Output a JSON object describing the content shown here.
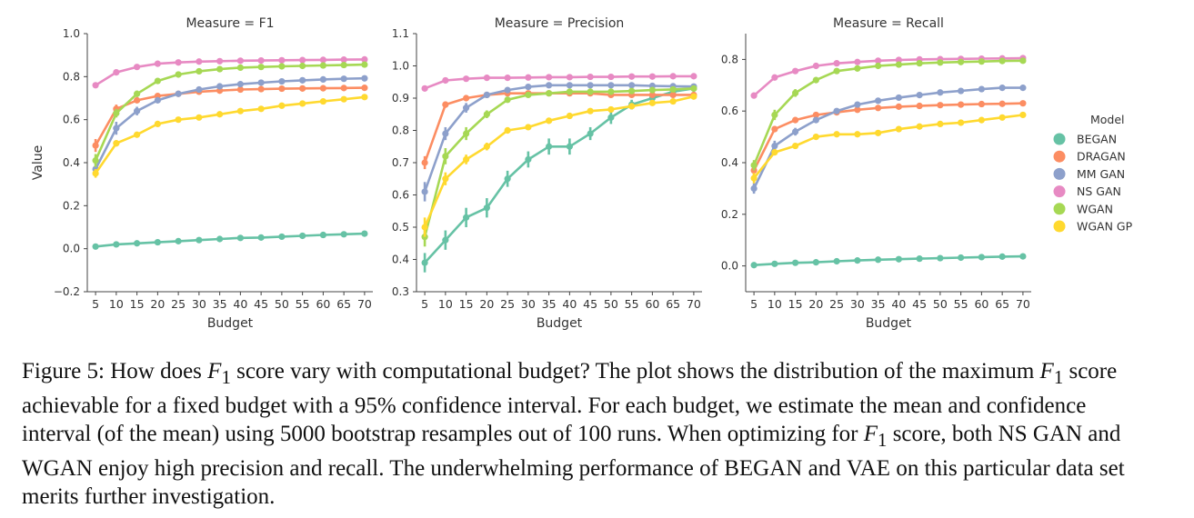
{
  "chart_data": [
    {
      "type": "line",
      "title": "Measure = F1",
      "xlabel": "Budget",
      "ylabel": "Value",
      "x": [
        5,
        10,
        15,
        20,
        25,
        30,
        35,
        40,
        45,
        50,
        55,
        60,
        65,
        70
      ],
      "ylim": [
        -0.2,
        1.0
      ],
      "yticks": [
        -0.2,
        0.0,
        0.2,
        0.4,
        0.6,
        0.8,
        1.0
      ],
      "ytick_labels": [
        "−0.2",
        "0.0",
        "0.2",
        "0.4",
        "0.6",
        "0.8",
        "1.0"
      ],
      "series": [
        {
          "name": "BEGAN",
          "values": [
            0.01,
            0.02,
            0.025,
            0.03,
            0.035,
            0.04,
            0.045,
            0.05,
            0.052,
            0.056,
            0.06,
            0.064,
            0.067,
            0.07
          ],
          "err": [
            0.008,
            0.008,
            0.008,
            0.008,
            0.008,
            0.008,
            0.008,
            0.008,
            0.008,
            0.008,
            0.008,
            0.008,
            0.008,
            0.008
          ]
        },
        {
          "name": "DRAGAN",
          "values": [
            0.48,
            0.65,
            0.69,
            0.71,
            0.72,
            0.73,
            0.735,
            0.74,
            0.742,
            0.744,
            0.745,
            0.746,
            0.747,
            0.748
          ],
          "err": [
            0.03,
            0.02,
            0.01,
            0.008,
            0.006,
            0.005,
            0.005,
            0.005,
            0.005,
            0.005,
            0.005,
            0.005,
            0.005,
            0.005
          ]
        },
        {
          "name": "MM GAN",
          "values": [
            0.37,
            0.56,
            0.64,
            0.69,
            0.72,
            0.74,
            0.755,
            0.765,
            0.772,
            0.778,
            0.783,
            0.787,
            0.79,
            0.792
          ],
          "err": [
            0.03,
            0.03,
            0.02,
            0.012,
            0.01,
            0.008,
            0.007,
            0.006,
            0.006,
            0.006,
            0.006,
            0.006,
            0.006,
            0.006
          ]
        },
        {
          "name": "NS GAN",
          "values": [
            0.76,
            0.82,
            0.845,
            0.86,
            0.866,
            0.87,
            0.872,
            0.874,
            0.875,
            0.876,
            0.877,
            0.878,
            0.879,
            0.88
          ],
          "err": [
            0.01,
            0.008,
            0.006,
            0.005,
            0.005,
            0.005,
            0.005,
            0.005,
            0.005,
            0.005,
            0.005,
            0.005,
            0.005,
            0.005
          ]
        },
        {
          "name": "WGAN",
          "values": [
            0.41,
            0.63,
            0.72,
            0.78,
            0.81,
            0.825,
            0.835,
            0.842,
            0.845,
            0.848,
            0.85,
            0.852,
            0.854,
            0.856
          ],
          "err": [
            0.03,
            0.02,
            0.015,
            0.01,
            0.008,
            0.007,
            0.006,
            0.006,
            0.006,
            0.006,
            0.006,
            0.006,
            0.006,
            0.006
          ]
        },
        {
          "name": "WGAN GP",
          "values": [
            0.35,
            0.49,
            0.53,
            0.58,
            0.6,
            0.61,
            0.625,
            0.64,
            0.65,
            0.665,
            0.675,
            0.685,
            0.695,
            0.705
          ],
          "err": [
            0.02,
            0.015,
            0.012,
            0.01,
            0.008,
            0.007,
            0.007,
            0.007,
            0.007,
            0.007,
            0.007,
            0.007,
            0.007,
            0.007
          ]
        }
      ]
    },
    {
      "type": "line",
      "title": "Measure = Precision",
      "xlabel": "Budget",
      "ylabel": "",
      "x": [
        5,
        10,
        15,
        20,
        25,
        30,
        35,
        40,
        45,
        50,
        55,
        60,
        65,
        70
      ],
      "ylim": [
        0.3,
        1.1
      ],
      "yticks": [
        0.3,
        0.4,
        0.5,
        0.6,
        0.7,
        0.8,
        0.9,
        1.0,
        1.1
      ],
      "ytick_labels": [
        "0.3",
        "0.4",
        "0.5",
        "0.6",
        "0.7",
        "0.8",
        "0.9",
        "1.0",
        "1.1"
      ],
      "series": [
        {
          "name": "BEGAN",
          "values": [
            0.39,
            0.46,
            0.53,
            0.56,
            0.65,
            0.71,
            0.75,
            0.75,
            0.79,
            0.84,
            0.88,
            0.9,
            0.92,
            0.93
          ],
          "err": [
            0.03,
            0.03,
            0.03,
            0.03,
            0.025,
            0.025,
            0.025,
            0.025,
            0.02,
            0.02,
            0.015,
            0.01,
            0.01,
            0.01
          ]
        },
        {
          "name": "DRAGAN",
          "values": [
            0.7,
            0.88,
            0.9,
            0.91,
            0.915,
            0.915,
            0.915,
            0.915,
            0.915,
            0.91,
            0.91,
            0.91,
            0.91,
            0.91
          ],
          "err": [
            0.02,
            0.01,
            0.008,
            0.006,
            0.005,
            0.005,
            0.005,
            0.005,
            0.005,
            0.005,
            0.005,
            0.005,
            0.005,
            0.005
          ]
        },
        {
          "name": "MM GAN",
          "values": [
            0.61,
            0.79,
            0.87,
            0.91,
            0.925,
            0.935,
            0.94,
            0.94,
            0.94,
            0.94,
            0.94,
            0.938,
            0.937,
            0.936
          ],
          "err": [
            0.03,
            0.02,
            0.015,
            0.01,
            0.006,
            0.005,
            0.005,
            0.005,
            0.005,
            0.005,
            0.005,
            0.005,
            0.005,
            0.005
          ]
        },
        {
          "name": "NS GAN",
          "values": [
            0.93,
            0.955,
            0.96,
            0.963,
            0.963,
            0.964,
            0.965,
            0.965,
            0.966,
            0.966,
            0.967,
            0.967,
            0.968,
            0.968
          ],
          "err": [
            0.006,
            0.005,
            0.004,
            0.004,
            0.004,
            0.004,
            0.004,
            0.004,
            0.004,
            0.004,
            0.004,
            0.004,
            0.004,
            0.004
          ]
        },
        {
          "name": "WGAN",
          "values": [
            0.47,
            0.72,
            0.79,
            0.85,
            0.895,
            0.91,
            0.915,
            0.92,
            0.92,
            0.92,
            0.922,
            0.925,
            0.927,
            0.93
          ],
          "err": [
            0.03,
            0.025,
            0.02,
            0.012,
            0.008,
            0.006,
            0.005,
            0.005,
            0.005,
            0.005,
            0.005,
            0.005,
            0.005,
            0.005
          ]
        },
        {
          "name": "WGAN GP",
          "values": [
            0.5,
            0.65,
            0.71,
            0.75,
            0.8,
            0.81,
            0.83,
            0.845,
            0.86,
            0.865,
            0.875,
            0.885,
            0.89,
            0.905
          ],
          "err": [
            0.03,
            0.02,
            0.015,
            0.012,
            0.01,
            0.008,
            0.007,
            0.006,
            0.006,
            0.006,
            0.006,
            0.006,
            0.006,
            0.006
          ]
        }
      ]
    },
    {
      "type": "line",
      "title": "Measure = Recall",
      "xlabel": "Budget",
      "ylabel": "",
      "x": [
        5,
        10,
        15,
        20,
        25,
        30,
        35,
        40,
        45,
        50,
        55,
        60,
        65,
        70
      ],
      "ylim": [
        -0.1,
        0.9
      ],
      "yticks": [
        0.0,
        0.2,
        0.4,
        0.6,
        0.8
      ],
      "ytick_labels": [
        "0.0",
        "0.2",
        "0.4",
        "0.6",
        "0.8"
      ],
      "series": [
        {
          "name": "BEGAN",
          "values": [
            0.003,
            0.008,
            0.012,
            0.014,
            0.018,
            0.021,
            0.024,
            0.026,
            0.028,
            0.03,
            0.032,
            0.034,
            0.036,
            0.037
          ],
          "err": [
            0.004,
            0.004,
            0.004,
            0.004,
            0.004,
            0.004,
            0.004,
            0.004,
            0.004,
            0.004,
            0.004,
            0.004,
            0.004,
            0.004
          ]
        },
        {
          "name": "DRAGAN",
          "values": [
            0.37,
            0.53,
            0.565,
            0.585,
            0.595,
            0.605,
            0.612,
            0.617,
            0.62,
            0.623,
            0.625,
            0.627,
            0.628,
            0.63
          ],
          "err": [
            0.02,
            0.012,
            0.01,
            0.008,
            0.006,
            0.005,
            0.005,
            0.005,
            0.005,
            0.005,
            0.005,
            0.005,
            0.005,
            0.005
          ]
        },
        {
          "name": "MM GAN",
          "values": [
            0.3,
            0.465,
            0.52,
            0.565,
            0.6,
            0.625,
            0.64,
            0.652,
            0.662,
            0.672,
            0.678,
            0.685,
            0.69,
            0.69
          ],
          "err": [
            0.02,
            0.02,
            0.015,
            0.01,
            0.008,
            0.007,
            0.006,
            0.006,
            0.006,
            0.006,
            0.006,
            0.006,
            0.006,
            0.006
          ]
        },
        {
          "name": "NS GAN",
          "values": [
            0.66,
            0.73,
            0.755,
            0.775,
            0.785,
            0.79,
            0.795,
            0.798,
            0.8,
            0.801,
            0.802,
            0.803,
            0.804,
            0.805
          ],
          "err": [
            0.01,
            0.008,
            0.006,
            0.005,
            0.005,
            0.004,
            0.004,
            0.004,
            0.004,
            0.004,
            0.004,
            0.004,
            0.004,
            0.004
          ]
        },
        {
          "name": "WGAN",
          "values": [
            0.39,
            0.585,
            0.67,
            0.72,
            0.755,
            0.765,
            0.775,
            0.78,
            0.785,
            0.788,
            0.79,
            0.792,
            0.794,
            0.795
          ],
          "err": [
            0.02,
            0.02,
            0.015,
            0.01,
            0.008,
            0.006,
            0.006,
            0.005,
            0.005,
            0.005,
            0.005,
            0.005,
            0.005,
            0.005
          ]
        },
        {
          "name": "WGAN GP",
          "values": [
            0.34,
            0.44,
            0.465,
            0.5,
            0.51,
            0.51,
            0.515,
            0.53,
            0.54,
            0.55,
            0.555,
            0.565,
            0.575,
            0.585
          ],
          "err": [
            0.02,
            0.012,
            0.01,
            0.008,
            0.006,
            0.006,
            0.006,
            0.006,
            0.006,
            0.006,
            0.006,
            0.006,
            0.006,
            0.006
          ]
        }
      ]
    }
  ],
  "legend": {
    "title": "Model",
    "placement": "right",
    "items": [
      {
        "name": "BEGAN",
        "color": "#66c2a5"
      },
      {
        "name": "DRAGAN",
        "color": "#fc8d62"
      },
      {
        "name": "MM GAN",
        "color": "#8da0cb"
      },
      {
        "name": "NS GAN",
        "color": "#e78ac3"
      },
      {
        "name": "WGAN",
        "color": "#a6d854"
      },
      {
        "name": "WGAN GP",
        "color": "#ffd92f"
      }
    ]
  },
  "caption": {
    "label": "Figure 5:",
    "p1": "How does ",
    "f1": "F",
    "sub": "1",
    "p2": " score vary with computational budget? The plot shows the distribution of the maximum ",
    "p3": " score achievable for a fixed budget with a 95% confidence interval. For each budget, we estimate the mean and confidence interval (of the mean) using 5000 bootstrap resamples out of 100 runs. When optimizing for ",
    "p4": " score, both ",
    "m1": "NS GAN",
    "p5": " and ",
    "m2": "WGAN",
    "p6": " enjoy high precision and recall. The underwhelming performance of ",
    "m3": "BEGAN",
    "p7": " and ",
    "m4": "VAE",
    "p8": " on this particular data set merits further investigation."
  }
}
